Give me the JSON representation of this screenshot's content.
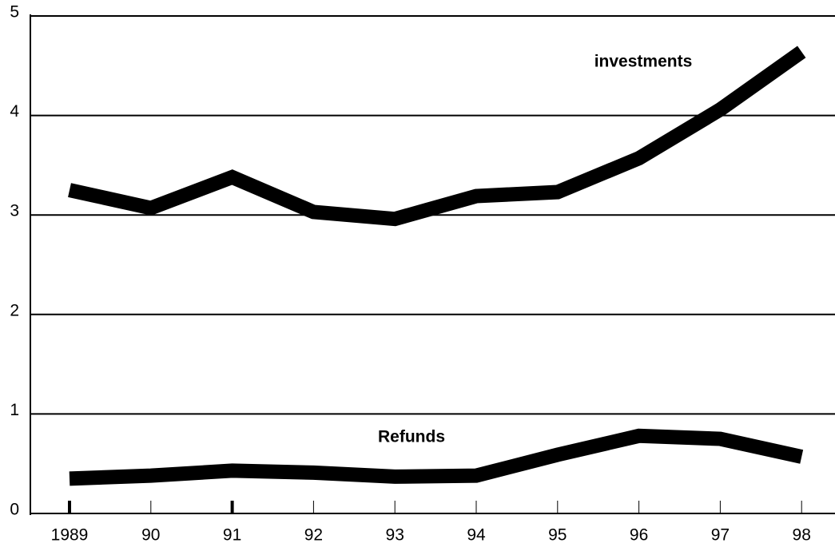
{
  "chart_data": {
    "type": "line",
    "categories": [
      "1989",
      "90",
      "91",
      "92",
      "93",
      "94",
      "95",
      "96",
      "97",
      "98"
    ],
    "series": [
      {
        "name": "investments",
        "color": "#000000",
        "values": [
          3.25,
          3.07,
          3.38,
          3.03,
          2.96,
          3.19,
          3.23,
          3.57,
          4.06,
          4.64
        ]
      },
      {
        "name": "Refunds",
        "color": "#000000",
        "values": [
          0.35,
          0.38,
          0.43,
          0.41,
          0.37,
          0.38,
          0.59,
          0.78,
          0.75,
          0.57
        ]
      }
    ],
    "ylim": [
      0,
      5
    ],
    "yticks": [
      0,
      1,
      2,
      3,
      4,
      5
    ],
    "grid": true
  }
}
